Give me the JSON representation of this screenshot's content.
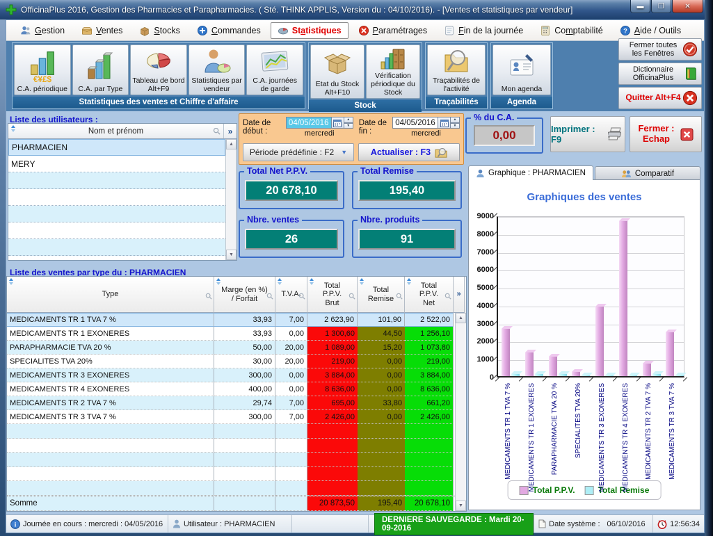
{
  "window": {
    "title": "OfficinaPlus 2016, Gestion des Pharmacies et Parapharmacies. ( Sté. THINK APPLIS, Version du : 04/10/2016). - [Ventes et statistiques par vendeur]"
  },
  "menu": {
    "items": [
      {
        "label": "Gestion",
        "key": "G",
        "icon": "people"
      },
      {
        "label": "Ventes",
        "key": "V",
        "icon": "sale-box"
      },
      {
        "label": "Stocks",
        "key": "S",
        "icon": "cube"
      },
      {
        "label": "Commandes",
        "key": "C",
        "icon": "plus-circle"
      },
      {
        "label": "Statistiques",
        "key": "a",
        "icon": "pie",
        "active": true
      },
      {
        "label": "Paramétrages",
        "key": "P",
        "icon": "x-circle-red"
      },
      {
        "label": "Fin de la journée",
        "key": "F",
        "icon": "notepad"
      },
      {
        "label": "Comptabilité",
        "key": "m",
        "icon": "calculator"
      },
      {
        "label": "Aide / Outils",
        "key": "A",
        "icon": "question-circle"
      }
    ]
  },
  "toolbar": {
    "groups": [
      {
        "label": "Statistiques des ventes et Chiffre d'affaire",
        "buttons": [
          {
            "label": "C.A. périodique",
            "icon": "bars-coins"
          },
          {
            "label": "C.A. par Type",
            "icon": "bars"
          },
          {
            "label": "Tableau de bord Alt+F9",
            "icon": "pie3d"
          },
          {
            "label": "Statistiques par vendeur",
            "icon": "person-pie"
          },
          {
            "label": "C.A. journées de garde",
            "icon": "line-pic"
          }
        ]
      },
      {
        "label": "Stock",
        "buttons": [
          {
            "label": "Etat du Stock Alt+F10",
            "icon": "open-box"
          },
          {
            "label": "Vérification périodique du Stock",
            "icon": "stock-cab"
          }
        ]
      },
      {
        "label": "Traçabilités",
        "buttons": [
          {
            "label": "Traçabilités de l'activité",
            "icon": "folder-mag"
          }
        ]
      },
      {
        "label": "Agenda",
        "buttons": [
          {
            "label": "Mon agenda",
            "icon": "agenda"
          }
        ]
      }
    ],
    "window_buttons": [
      {
        "label": "Fermer toutes les Fenêtres",
        "icon": "check-badge"
      },
      {
        "label": "Dictionnaire OfficinaPlus",
        "icon": "book-green"
      },
      {
        "label": "Quitter Alt+F4",
        "icon": "x-badge",
        "danger": true
      }
    ]
  },
  "users_panel": {
    "title": "Liste des utilisateurs :",
    "column_header": "Nom et prénom",
    "more_button": "»",
    "rows": [
      "PHARMACIEN",
      "MERY"
    ],
    "selected_index": 0
  },
  "filters": {
    "date_start_label": "Date de début :",
    "date_start": "04/05/2016",
    "date_start_day": "mercredi",
    "date_end_label": "Date de fin :",
    "date_end": "04/05/2016",
    "date_end_day": "mercredi",
    "period_button": "Période prédéfinie : F2",
    "refresh_button": "Actualiser : F3"
  },
  "ca_percent": {
    "label": "% du C.A.",
    "value": "0,00"
  },
  "actions": {
    "print_button": "Imprimer : F9",
    "close_button_line1": "Fermer :",
    "close_button_line2": "Echap"
  },
  "totals": [
    {
      "label": "Total Net P.P.V.",
      "value": "20 678,10"
    },
    {
      "label": "Total Remise",
      "value": "195,40"
    },
    {
      "label": "Nbre. ventes",
      "value": "26"
    },
    {
      "label": "Nbre. produits",
      "value": "91"
    }
  ],
  "tabs": [
    {
      "label": "Graphique : PHARMACIEN",
      "icon": "person-tab",
      "active": true
    },
    {
      "label": "Comparatif",
      "icon": "people-tab",
      "active": false
    }
  ],
  "chart_data": {
    "type": "bar",
    "title": "Graphiques des ventes",
    "categories": [
      "MEDICAMENTS TR 1  TVA 7 %",
      "MEDICAMENTS TR 1 EXONERES",
      "PARAPHARMACIE TVA 20 %",
      "SPECIALITES  TVA 20%",
      "MEDICAMENTS TR 3 EXONERES",
      "MEDICAMENTS TR 4 EXONERES",
      "MEDICAMENTS TR 2  TVA 7 %",
      "MEDICAMENTS TR 3  TVA 7 %"
    ],
    "series": [
      {
        "name": "Total P.P.V.",
        "color": "#e2a9e2",
        "values": [
          2623.9,
          1300.6,
          1089.0,
          219.0,
          3884.0,
          8636.0,
          695.0,
          2426.0
        ]
      },
      {
        "name": "Total Remise",
        "color": "#aeeef6",
        "values": [
          101.9,
          44.5,
          15.2,
          0.0,
          0.0,
          0.0,
          33.8,
          0.0
        ]
      }
    ],
    "ylim": [
      0,
      9000
    ],
    "ytick_step": 1000,
    "grid": true,
    "legend_position": "bottom"
  },
  "sales_table": {
    "title": "Liste des ventes par type du : PHARMACIEN",
    "more_button": "»",
    "columns": [
      "Type",
      "Marge (en %)\n/ Forfait",
      "T.V.A.",
      "Total\nP.P.V.\nBrut",
      "Total\nRemise",
      "Total\nP.P.V.\nNet"
    ],
    "rows": [
      [
        "MEDICAMENTS TR 1  TVA 7 %",
        "33,93",
        "7,00",
        "2 623,90",
        "101,90",
        "2 522,00"
      ],
      [
        "MEDICAMENTS TR 1 EXONERES",
        "33,93",
        "0,00",
        "1 300,60",
        "44,50",
        "1 256,10"
      ],
      [
        "PARAPHARMACIE TVA 20 %",
        "50,00",
        "20,00",
        "1 089,00",
        "15,20",
        "1 073,80"
      ],
      [
        "SPECIALITES  TVA 20%",
        "30,00",
        "20,00",
        "219,00",
        "0,00",
        "219,00"
      ],
      [
        "MEDICAMENTS TR 3 EXONERES",
        "300,00",
        "0,00",
        "3 884,00",
        "0,00",
        "3 884,00"
      ],
      [
        "MEDICAMENTS TR 4 EXONERES",
        "400,00",
        "0,00",
        "8 636,00",
        "0,00",
        "8 636,00"
      ],
      [
        "MEDICAMENTS TR 2  TVA 7 %",
        "29,74",
        "7,00",
        "695,00",
        "33,80",
        "661,20"
      ],
      [
        "MEDICAMENTS TR 3  TVA 7 %",
        "300,00",
        "7,00",
        "2 426,00",
        "0,00",
        "2 426,00"
      ]
    ],
    "sum_row": [
      "Somme",
      "",
      "",
      "20 873,50",
      "195,40",
      "20 678,10"
    ],
    "selected_row_index": 0
  },
  "status_bar": {
    "day_in_progress": "Journée en cours : mercredi : 04/05/2016",
    "user": "Utilisateur : PHARMACIEN",
    "last_backup": "DERNIERE SAUVEGARDE : Mardi 20-09-2016",
    "system_date_label": "Date système :",
    "system_date": "06/10/2016",
    "time": "12:56:34"
  },
  "colors": {
    "accent_teal": "#037f76",
    "value_red": "#a01212",
    "col_brut_bg": "#fb0909",
    "col_remise_bg": "#7e7e00",
    "col_net_bg": "#07dd07",
    "bar_ppv": "#e2a9e2",
    "bar_remise": "#aeeef6",
    "backup_badge_bg": "#18a018",
    "toolbar_bg": "#4e7fae",
    "group_band_bg": "#1d5a8d",
    "panel_bg": "#aec7e3",
    "date_panel_bg": "#f9c890"
  }
}
